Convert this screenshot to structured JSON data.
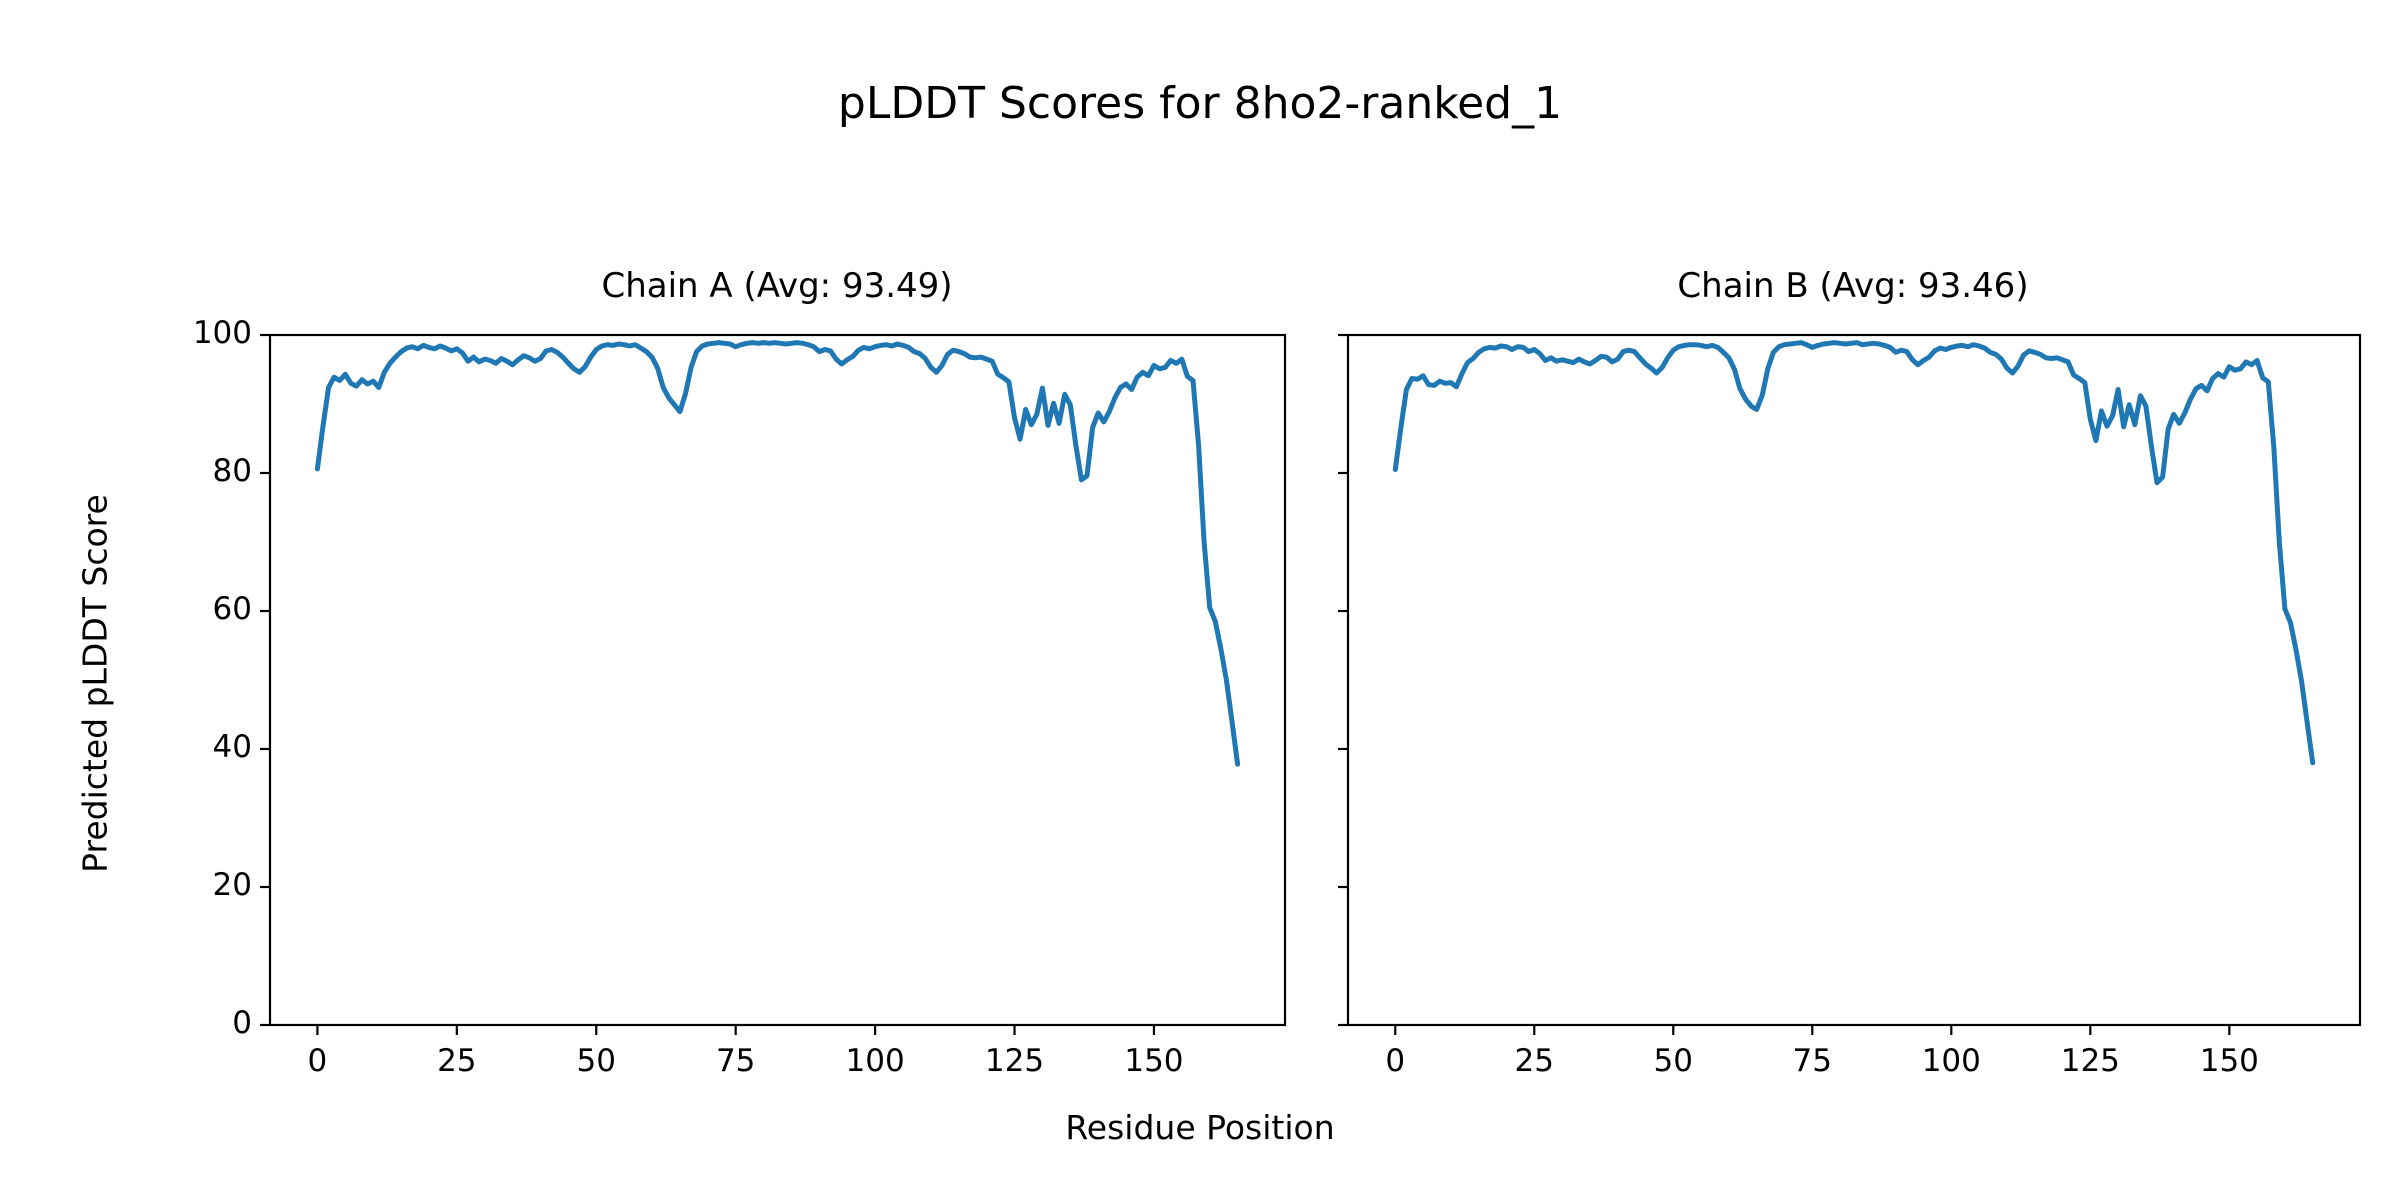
{
  "figure": {
    "title": "pLDDT Scores for 8ho2-ranked_1",
    "background_color": "#ffffff",
    "text_color": "#000000"
  },
  "chart_data": {
    "type": "line",
    "suptitle": "pLDDT Scores for 8ho2-ranked_1",
    "xlabel": "Residue Position",
    "ylabel": "Predicted pLDDT Score",
    "line_color": "#1f77b4",
    "axis_color": "#000000",
    "grid": false,
    "legend": "none",
    "ylim": [
      0,
      100
    ],
    "xlim": [
      -8.5,
      173.5
    ],
    "yticks": [
      0,
      20,
      40,
      60,
      80,
      100
    ],
    "xticks": [
      0,
      25,
      50,
      75,
      100,
      125,
      150
    ],
    "x_start": 0,
    "x_step": 1,
    "subplots": [
      {
        "id": "chain-a",
        "title": "Chain A (Avg: 93.49)",
        "chain": "A",
        "avg": 93.49,
        "values": [
          80.6,
          86.8,
          92.4,
          93.9,
          93.4,
          94.3,
          93.0,
          92.6,
          93.5,
          92.9,
          93.3,
          92.4,
          94.6,
          95.9,
          96.8,
          97.6,
          98.1,
          98.3,
          98.0,
          98.5,
          98.2,
          98.0,
          98.4,
          98.1,
          97.7,
          98.0,
          97.4,
          96.2,
          96.8,
          96.1,
          96.5,
          96.3,
          95.9,
          96.6,
          96.2,
          95.7,
          96.4,
          97.0,
          96.7,
          96.2,
          96.6,
          97.7,
          97.9,
          97.5,
          96.8,
          95.9,
          95.1,
          94.6,
          95.4,
          96.8,
          97.9,
          98.4,
          98.6,
          98.5,
          98.7,
          98.6,
          98.4,
          98.6,
          98.1,
          97.6,
          96.8,
          95.2,
          92.4,
          90.9,
          89.9,
          88.9,
          91.5,
          95.3,
          97.6,
          98.4,
          98.7,
          98.8,
          98.9,
          98.8,
          98.7,
          98.3,
          98.6,
          98.8,
          98.9,
          98.8,
          98.9,
          98.8,
          98.9,
          98.8,
          98.7,
          98.8,
          98.9,
          98.8,
          98.6,
          98.3,
          97.6,
          97.9,
          97.7,
          96.5,
          95.8,
          96.4,
          96.9,
          97.8,
          98.2,
          98.0,
          98.3,
          98.5,
          98.6,
          98.4,
          98.7,
          98.5,
          98.2,
          97.6,
          97.3,
          96.6,
          95.3,
          94.6,
          95.6,
          97.2,
          97.8,
          97.6,
          97.3,
          96.8,
          96.7,
          96.8,
          96.5,
          96.2,
          94.3,
          93.8,
          93.2,
          88.0,
          84.9,
          89.2,
          87.0,
          88.5,
          92.3,
          86.9,
          90.1,
          87.2,
          91.4,
          89.9,
          84.0,
          79.0,
          79.6,
          86.6,
          88.7,
          87.4,
          88.9,
          90.9,
          92.4,
          92.9,
          92.1,
          93.9,
          94.6,
          94.1,
          95.6,
          95.1,
          95.3,
          96.3,
          95.9,
          96.5,
          94.0,
          93.4,
          84.0,
          70.0,
          60.5,
          58.5,
          54.5,
          50.0,
          44.0,
          37.8
        ]
      },
      {
        "id": "chain-b",
        "title": "Chain B (Avg: 93.46)",
        "chain": "B",
        "avg": 93.46,
        "values": [
          80.5,
          86.5,
          92.1,
          93.7,
          93.6,
          94.1,
          92.8,
          92.7,
          93.3,
          93.0,
          93.1,
          92.5,
          94.4,
          96.0,
          96.6,
          97.5,
          98.0,
          98.2,
          98.1,
          98.4,
          98.3,
          97.9,
          98.3,
          98.2,
          97.6,
          97.9,
          97.3,
          96.3,
          96.7,
          96.2,
          96.4,
          96.2,
          96.0,
          96.5,
          96.1,
          95.8,
          96.3,
          96.9,
          96.8,
          96.1,
          96.5,
          97.6,
          97.8,
          97.6,
          96.7,
          95.8,
          95.2,
          94.5,
          95.3,
          96.7,
          97.8,
          98.3,
          98.5,
          98.6,
          98.6,
          98.5,
          98.3,
          98.5,
          98.2,
          97.5,
          96.7,
          95.0,
          92.2,
          90.7,
          89.7,
          89.2,
          91.3,
          95.1,
          97.5,
          98.3,
          98.6,
          98.7,
          98.8,
          98.9,
          98.6,
          98.2,
          98.5,
          98.7,
          98.8,
          98.9,
          98.8,
          98.7,
          98.8,
          98.9,
          98.6,
          98.7,
          98.8,
          98.7,
          98.5,
          98.2,
          97.5,
          97.8,
          97.6,
          96.4,
          95.7,
          96.3,
          96.8,
          97.7,
          98.1,
          97.9,
          98.2,
          98.4,
          98.5,
          98.3,
          98.6,
          98.4,
          98.1,
          97.5,
          97.2,
          96.5,
          95.2,
          94.5,
          95.5,
          97.1,
          97.7,
          97.5,
          97.2,
          96.7,
          96.6,
          96.7,
          96.4,
          96.1,
          94.2,
          93.7,
          93.1,
          87.8,
          84.7,
          89.0,
          86.8,
          88.3,
          92.1,
          86.7,
          89.9,
          87.0,
          91.2,
          89.7,
          83.8,
          78.6,
          79.4,
          86.4,
          88.5,
          87.2,
          88.7,
          90.7,
          92.2,
          92.7,
          91.9,
          93.7,
          94.4,
          93.9,
          95.4,
          94.9,
          95.1,
          96.1,
          95.7,
          96.3,
          93.8,
          93.2,
          83.8,
          69.8,
          60.3,
          58.3,
          54.3,
          49.8,
          43.8,
          38.0
        ]
      }
    ]
  }
}
